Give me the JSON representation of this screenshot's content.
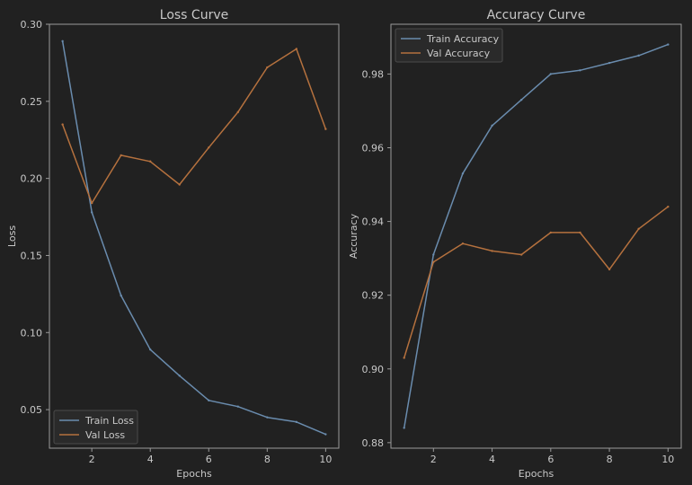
{
  "chart_data": [
    {
      "type": "line",
      "title": "Loss Curve",
      "xlabel": "Epochs",
      "ylabel": "Loss",
      "x": [
        1,
        2,
        3,
        4,
        5,
        6,
        7,
        8,
        9,
        10
      ],
      "xlim": [
        0.55,
        10.45
      ],
      "ylim": [
        0.025,
        0.3
      ],
      "xticks": [
        2,
        4,
        6,
        8,
        10
      ],
      "yticks": [
        0.05,
        0.1,
        0.15,
        0.2,
        0.25,
        0.3
      ],
      "ytick_labels": [
        "0.05",
        "0.10",
        "0.15",
        "0.20",
        "0.25",
        "0.30"
      ],
      "legend": "lower-left",
      "series": [
        {
          "name": "Train Loss",
          "color": "#6a8cae",
          "values": [
            0.289,
            0.178,
            0.124,
            0.089,
            0.072,
            0.056,
            0.052,
            0.045,
            0.042,
            0.034
          ]
        },
        {
          "name": "Val Loss",
          "color": "#b5713e",
          "values": [
            0.235,
            0.184,
            0.215,
            0.211,
            0.196,
            0.22,
            0.243,
            0.272,
            0.284,
            0.232
          ]
        }
      ]
    },
    {
      "type": "line",
      "title": "Accuracy Curve",
      "xlabel": "Epochs",
      "ylabel": "Accuracy",
      "x": [
        1,
        2,
        3,
        4,
        5,
        6,
        7,
        8,
        9,
        10
      ],
      "xlim": [
        0.55,
        10.45
      ],
      "ylim": [
        0.8785,
        0.9935
      ],
      "xticks": [
        2,
        4,
        6,
        8,
        10
      ],
      "yticks": [
        0.88,
        0.9,
        0.92,
        0.94,
        0.96,
        0.98
      ],
      "ytick_labels": [
        "0.88",
        "0.90",
        "0.92",
        "0.94",
        "0.96",
        "0.98"
      ],
      "legend": "upper-left",
      "series": [
        {
          "name": "Train Accuracy",
          "color": "#6a8cae",
          "values": [
            0.884,
            0.931,
            0.953,
            0.966,
            0.973,
            0.98,
            0.981,
            0.983,
            0.985,
            0.988
          ]
        },
        {
          "name": "Val Accuracy",
          "color": "#b5713e",
          "values": [
            0.903,
            0.929,
            0.934,
            0.932,
            0.931,
            0.937,
            0.937,
            0.927,
            0.938,
            0.944
          ]
        }
      ]
    }
  ],
  "colors": {
    "background": "#212121",
    "spine": "#9a9a9a",
    "text": "#c8c8c8",
    "legend_bg": "#2a2a2a",
    "legend_border": "#4a4a4a"
  }
}
